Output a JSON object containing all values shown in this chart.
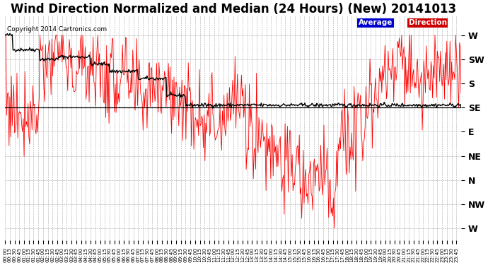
{
  "title": "Wind Direction Normalized and Median (24 Hours) (New) 20141013",
  "copyright": "Copyright 2014 Cartronics.com",
  "ytick_labels": [
    "W",
    "SW",
    "S",
    "SE",
    "E",
    "NE",
    "N",
    "NW",
    "W"
  ],
  "ytick_values": [
    8,
    7,
    6,
    5,
    4,
    3,
    2,
    1,
    0
  ],
  "ylim": [
    -0.5,
    8.8
  ],
  "legend_labels": [
    "Average",
    "Direction"
  ],
  "legend_bg_colors": [
    "#0000cc",
    "#cc0000"
  ],
  "line_colors": [
    "#000000",
    "#ff0000"
  ],
  "background_color": "#ffffff",
  "grid_color": "#aaaaaa",
  "title_fontsize": 12,
  "figsize": [
    6.9,
    3.75
  ],
  "dpi": 100,
  "hline_y": 5.0
}
